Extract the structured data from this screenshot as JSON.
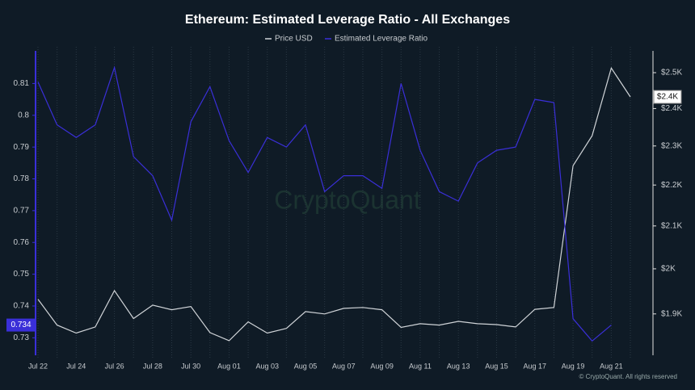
{
  "chart_data": {
    "type": "line",
    "title": "Ethereum: Estimated Leverage Ratio - All Exchanges",
    "watermark": "CryptoQuant",
    "footer": "© CryptoQuant. All rights reserved",
    "categories": [
      "Jul 22",
      null,
      "Jul 24",
      null,
      "Jul 26",
      null,
      "Jul 28",
      null,
      "Jul 30",
      null,
      "Aug 01",
      null,
      "Aug 03",
      null,
      "Aug 05",
      null,
      "Aug 07",
      null,
      "Aug 09",
      null,
      "Aug 11",
      null,
      "Aug 13",
      null,
      "Aug 15",
      null,
      "Aug 17",
      null,
      "Aug 19",
      null,
      "Aug 21",
      null
    ],
    "series": [
      {
        "name": "Price USD",
        "color": "#d0d4d8",
        "axis": "y2",
        "values": [
          1932,
          1876,
          1859,
          1872,
          1951,
          1890,
          1919,
          1909,
          1916,
          1860,
          1843,
          1883,
          1859,
          1869,
          1905,
          1900,
          1912,
          1914,
          1909,
          1871,
          1879,
          1876,
          1884,
          1879,
          1877,
          1872,
          1910,
          1914,
          2249,
          2327,
          2513,
          2432
        ],
        "last_label": "$2.4K"
      },
      {
        "name": "Estimated Leverage Ratio",
        "color": "#3a2fd8",
        "values": [
          0.8105,
          0.797,
          0.793,
          0.797,
          0.815,
          0.787,
          0.781,
          0.767,
          0.798,
          0.809,
          0.792,
          0.782,
          0.793,
          0.79,
          0.797,
          0.776,
          0.781,
          0.781,
          0.777,
          0.81,
          0.789,
          0.776,
          0.773,
          0.785,
          0.789,
          0.79,
          0.805,
          0.804,
          0.736,
          0.729,
          0.734,
          null
        ],
        "last_label": "0.734"
      }
    ],
    "ylim": [
      0.725,
      0.819
    ],
    "yticks": [
      0.73,
      0.74,
      0.75,
      0.76,
      0.77,
      0.78,
      0.79,
      0.8,
      0.81
    ],
    "y2lim": [
      1816,
      2551
    ],
    "y2log": true,
    "y2ticks": [
      {
        "value": 1900,
        "label": "$1.9K"
      },
      {
        "value": 2000,
        "label": "$2K"
      },
      {
        "value": 2100,
        "label": "$2.1K"
      },
      {
        "value": 2200,
        "label": "$2.2K"
      },
      {
        "value": 2300,
        "label": "$2.3K"
      },
      {
        "value": 2400,
        "label": "$2.4K"
      },
      {
        "value": 2500,
        "label": "$2.5K"
      }
    ],
    "grid": true,
    "legend": "top"
  }
}
